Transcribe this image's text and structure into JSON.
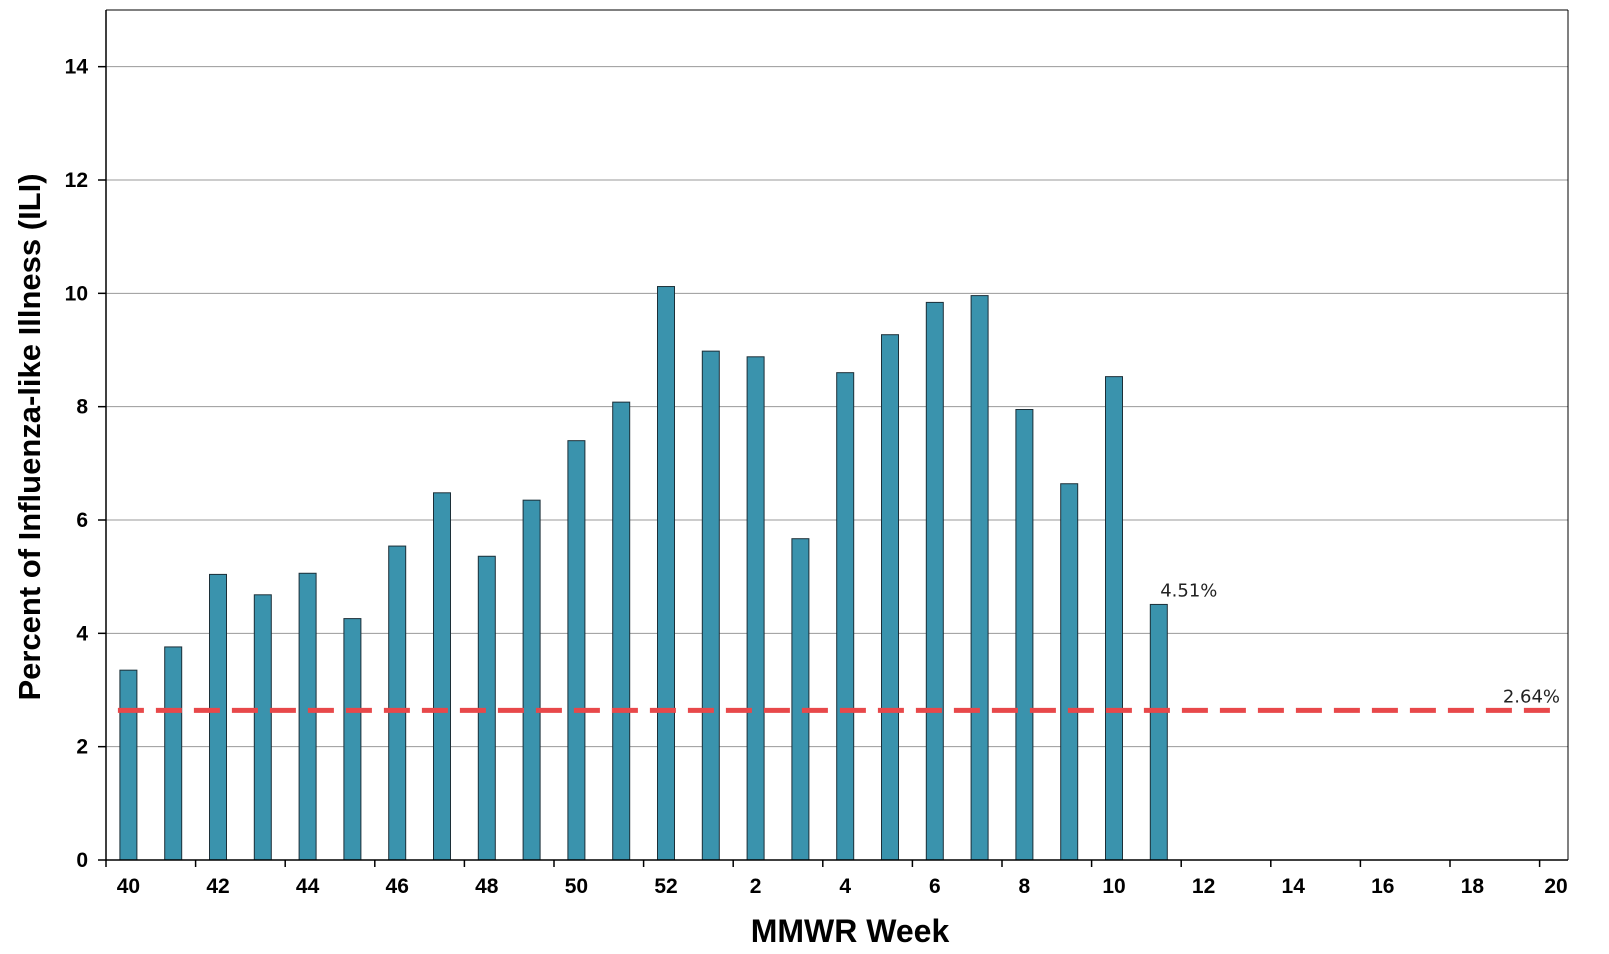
{
  "chart_data": {
    "type": "bar",
    "xlabel": "MMWR Week",
    "ylabel": "Percent of Influenza-like Illness (ILI)",
    "ylim": [
      0,
      15
    ],
    "yticks": [
      0,
      2,
      4,
      6,
      8,
      10,
      12,
      14
    ],
    "grid": "horizontal",
    "weeks": [
      40,
      41,
      42,
      43,
      44,
      45,
      46,
      47,
      48,
      49,
      50,
      51,
      52,
      1,
      2,
      3,
      4,
      5,
      6,
      7,
      8,
      9,
      10,
      11,
      12,
      13,
      14,
      15,
      16,
      17,
      18,
      19,
      20
    ],
    "xtick_labels": [
      "40",
      "42",
      "44",
      "46",
      "48",
      "50",
      "52",
      "2",
      "4",
      "6",
      "8",
      "10",
      "12",
      "14",
      "16",
      "18",
      "20"
    ],
    "series": [
      {
        "color": "#3a93ad",
        "values": [
          3.35,
          3.76,
          5.04,
          4.68,
          5.06,
          4.26,
          5.54,
          6.48,
          5.36,
          6.35,
          7.4,
          8.08,
          10.12,
          8.98,
          8.88,
          5.67,
          8.6,
          9.27,
          9.84,
          9.96,
          7.95,
          6.64,
          8.53,
          4.51
        ]
      }
    ],
    "baseline": {
      "value": 2.64,
      "label": "2.64%",
      "color": "#e8484a",
      "style": "dashed"
    },
    "annotations": [
      {
        "index": 23,
        "label": "4.51%"
      }
    ]
  }
}
